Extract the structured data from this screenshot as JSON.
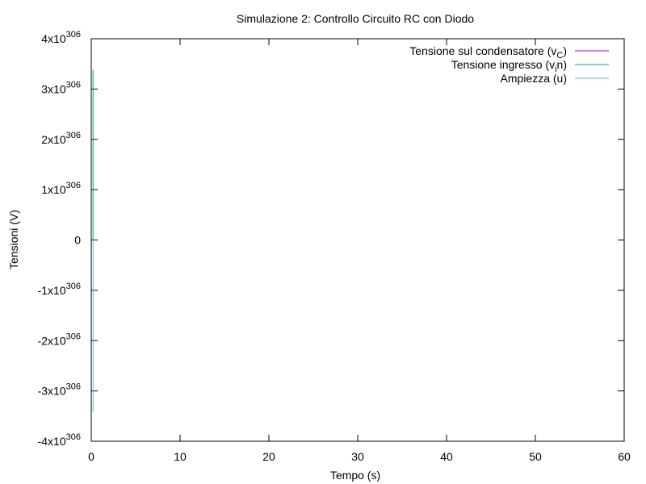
{
  "chart_data": {
    "type": "line",
    "title": "Simulazione 2: Controllo Circuito RC con Diodo",
    "xlabel": "Tempo (s)",
    "ylabel": "Tensioni (V)",
    "xlim": [
      0,
      60
    ],
    "ylim_exponent": 306,
    "ylim_mantissa": [
      -4,
      4
    ],
    "x_ticks": [
      {
        "value": 0,
        "label": "0"
      },
      {
        "value": 10,
        "label": "10"
      },
      {
        "value": 20,
        "label": "20"
      },
      {
        "value": 30,
        "label": "30"
      },
      {
        "value": 40,
        "label": "40"
      },
      {
        "value": 50,
        "label": "50"
      },
      {
        "value": 60,
        "label": "60"
      }
    ],
    "y_ticks": [
      {
        "value": 4,
        "base": "4x10",
        "exp": "306"
      },
      {
        "value": 3,
        "base": "3x10",
        "exp": "306"
      },
      {
        "value": 2,
        "base": "2x10",
        "exp": "306"
      },
      {
        "value": 1,
        "base": "1x10",
        "exp": "306"
      },
      {
        "value": 0,
        "base": "0",
        "exp": ""
      },
      {
        "value": -1,
        "base": "-1x10",
        "exp": "306"
      },
      {
        "value": -2,
        "base": "-2x10",
        "exp": "306"
      },
      {
        "value": -3,
        "base": "-3x10",
        "exp": "306"
      },
      {
        "value": -4,
        "base": "-4x10",
        "exp": "306"
      }
    ],
    "grid": false,
    "legend_position": "top-right",
    "series": [
      {
        "name": "Tensione sul condensatore (v",
        "name_sub": "C",
        "name_tail": ")",
        "color": "#9400d3",
        "x": [
          0.2,
          0.2
        ],
        "y": [
          0,
          0
        ]
      },
      {
        "name": "Tensione ingresso (v",
        "name_sub": "i",
        "name_tail": "n)",
        "color": "#009e73",
        "x": [
          0.2,
          0.2,
          0.2
        ],
        "y": [
          0,
          3.38,
          0
        ]
      },
      {
        "name": "Ampiezza (u)",
        "name_sub": "",
        "name_tail": "",
        "color": "#56b4e9",
        "x": [
          0.2,
          0.2,
          0.2
        ],
        "y": [
          0,
          -3.42,
          0
        ]
      }
    ]
  }
}
